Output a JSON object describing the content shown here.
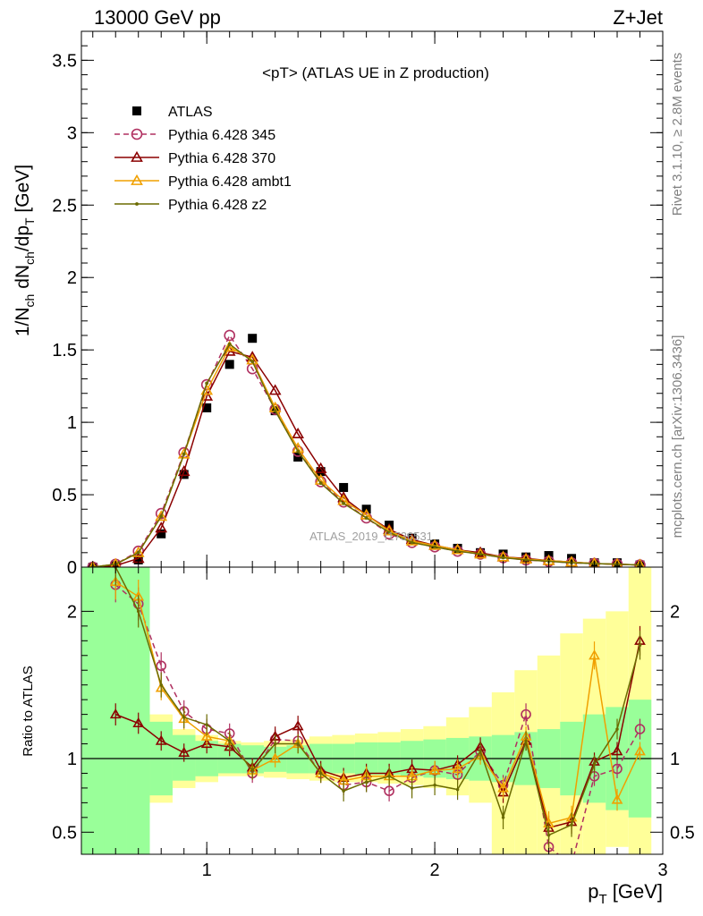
{
  "header": {
    "left": "13000 GeV pp",
    "right": "Z+Jet"
  },
  "side_labels": {
    "top": "Rivet 3.1.10, ≥ 2.8M events",
    "bottom": "mcplots.cern.ch [arXiv:1306.3436]"
  },
  "watermark": "ATLAS_2019_I1736531",
  "chart_data": [
    {
      "type": "line",
      "panel": "main",
      "title": "<pT> (ATLAS UE in Z production)",
      "ylabel": "1/N_ch dN_ch/dp_T [GeV]",
      "xlabel": "p_T [GeV]",
      "xlim": [
        0.45,
        3.0
      ],
      "ylim": [
        0,
        3.7
      ],
      "yticks": [
        "0",
        "0.5",
        "1",
        "1.5",
        "2",
        "2.5",
        "3",
        "3.5"
      ],
      "xticks": [
        "1",
        "2",
        "3"
      ],
      "legend_position": "top-left",
      "x": [
        0.5,
        0.6,
        0.7,
        0.8,
        0.9,
        1.0,
        1.1,
        1.2,
        1.3,
        1.4,
        1.5,
        1.6,
        1.7,
        1.8,
        1.9,
        2.0,
        2.1,
        2.2,
        2.3,
        2.4,
        2.5,
        2.6,
        2.7,
        2.8,
        2.9
      ],
      "series": [
        {
          "name": "ATLAS",
          "color": "#000000",
          "marker": "square",
          "values": [
            0.0,
            0.01,
            0.05,
            0.23,
            0.64,
            1.1,
            1.4,
            1.58,
            1.08,
            0.76,
            0.66,
            0.55,
            0.4,
            0.29,
            0.2,
            0.16,
            0.13,
            0.1,
            0.09,
            0.07,
            0.08,
            0.06,
            0.03,
            0.03,
            0.015
          ]
        },
        {
          "name": "Pythia 6.428 345",
          "color": "#b03060",
          "marker": "circle",
          "dashed": true,
          "values": [
            0.0,
            0.02,
            0.11,
            0.37,
            0.79,
            1.26,
            1.6,
            1.37,
            1.09,
            0.8,
            0.59,
            0.45,
            0.34,
            0.23,
            0.17,
            0.14,
            0.11,
            0.09,
            0.065,
            0.05,
            0.04,
            0.03,
            0.025,
            0.02,
            0.015
          ]
        },
        {
          "name": "Pythia 6.428 370",
          "color": "#8b0000",
          "marker": "triangle",
          "values": [
            0.0,
            0.01,
            0.06,
            0.27,
            0.66,
            1.18,
            1.49,
            1.45,
            1.22,
            0.92,
            0.68,
            0.48,
            0.36,
            0.26,
            0.19,
            0.15,
            0.12,
            0.1,
            0.07,
            0.06,
            0.045,
            0.035,
            0.025,
            0.02,
            0.015
          ]
        },
        {
          "name": "Pythia 6.428 ambt1",
          "color": "#f0a000",
          "marker": "triangle",
          "values": [
            0.0,
            0.02,
            0.1,
            0.35,
            0.78,
            1.22,
            1.52,
            1.43,
            1.1,
            0.82,
            0.6,
            0.46,
            0.36,
            0.25,
            0.18,
            0.15,
            0.12,
            0.09,
            0.07,
            0.055,
            0.045,
            0.035,
            0.025,
            0.02,
            0.015
          ]
        },
        {
          "name": "Pythia 6.428 z2",
          "color": "#6b6b00",
          "marker": "dot",
          "values": [
            0.0,
            0.02,
            0.1,
            0.35,
            0.78,
            1.27,
            1.54,
            1.42,
            1.08,
            0.8,
            0.58,
            0.44,
            0.34,
            0.24,
            0.17,
            0.14,
            0.11,
            0.09,
            0.065,
            0.05,
            0.04,
            0.03,
            0.025,
            0.02,
            0.015
          ]
        }
      ]
    },
    {
      "type": "line",
      "panel": "ratio",
      "ylabel": "Ratio to ATLAS",
      "xlabel": "p_T [GeV]",
      "xlim": [
        0.45,
        3.0
      ],
      "ylim": [
        0.35,
        2.3
      ],
      "yticks": [
        "0.5",
        "1",
        "2"
      ],
      "xticks": [
        "1",
        "2",
        "3"
      ],
      "band_edges": [
        0.45,
        0.55,
        0.65,
        0.75,
        0.85,
        0.95,
        1.05,
        1.15,
        1.25,
        1.35,
        1.45,
        1.55,
        1.65,
        1.75,
        1.85,
        1.95,
        2.05,
        2.15,
        2.25,
        2.35,
        2.45,
        2.55,
        2.65,
        2.75,
        2.85,
        2.95
      ],
      "band_stat": [
        [
          0.35,
          2.3
        ],
        [
          0.35,
          2.3
        ],
        [
          0.35,
          2.3
        ],
        [
          0.75,
          1.25
        ],
        [
          0.85,
          1.16
        ],
        [
          0.88,
          1.12
        ],
        [
          0.9,
          1.1
        ],
        [
          0.9,
          1.09
        ],
        [
          0.91,
          1.08
        ],
        [
          0.9,
          1.09
        ],
        [
          0.9,
          1.1
        ],
        [
          0.9,
          1.1
        ],
        [
          0.89,
          1.11
        ],
        [
          0.89,
          1.11
        ],
        [
          0.88,
          1.12
        ],
        [
          0.87,
          1.13
        ],
        [
          0.86,
          1.14
        ],
        [
          0.85,
          1.15
        ],
        [
          0.84,
          1.16
        ],
        [
          0.82,
          1.18
        ],
        [
          0.8,
          1.2
        ],
        [
          0.75,
          1.25
        ],
        [
          0.7,
          1.3
        ],
        [
          0.65,
          1.35
        ],
        [
          0.6,
          1.4
        ]
      ],
      "band_total": [
        [
          0.35,
          2.3
        ],
        [
          0.35,
          2.3
        ],
        [
          0.35,
          2.3
        ],
        [
          0.7,
          1.3
        ],
        [
          0.8,
          1.2
        ],
        [
          0.84,
          1.16
        ],
        [
          0.88,
          1.12
        ],
        [
          0.88,
          1.11
        ],
        [
          0.87,
          1.12
        ],
        [
          0.86,
          1.13
        ],
        [
          0.85,
          1.15
        ],
        [
          0.84,
          1.16
        ],
        [
          0.84,
          1.17
        ],
        [
          0.83,
          1.18
        ],
        [
          0.82,
          1.2
        ],
        [
          0.8,
          1.22
        ],
        [
          0.75,
          1.28
        ],
        [
          0.7,
          1.35
        ],
        [
          0.35,
          1.45
        ],
        [
          0.35,
          1.6
        ],
        [
          0.35,
          1.7
        ],
        [
          0.35,
          1.85
        ],
        [
          0.35,
          1.95
        ],
        [
          0.4,
          2.0
        ],
        [
          0.35,
          2.3
        ]
      ],
      "x": [
        0.6,
        0.7,
        0.8,
        0.9,
        1.0,
        1.1,
        1.2,
        1.3,
        1.4,
        1.5,
        1.6,
        1.7,
        1.8,
        1.9,
        2.0,
        2.1,
        2.2,
        2.3,
        2.4,
        2.5,
        2.6,
        2.7,
        2.8,
        2.9
      ],
      "series": [
        {
          "name": "Pythia 6.428 345",
          "color": "#b03060",
          "marker": "circle",
          "dashed": true,
          "values": [
            2.18,
            2.05,
            1.63,
            1.32,
            1.2,
            1.17,
            0.9,
            1.13,
            1.12,
            0.9,
            0.82,
            0.84,
            0.78,
            0.87,
            0.92,
            0.89,
            1.05,
            0.82,
            1.3,
            0.4,
            0.28,
            0.88,
            0.93,
            1.2
          ]
        },
        {
          "name": "Pythia 6.428 370",
          "color": "#8b0000",
          "marker": "triangle",
          "values": [
            1.3,
            1.24,
            1.12,
            1.04,
            1.1,
            1.08,
            0.94,
            1.15,
            1.22,
            0.92,
            0.87,
            0.9,
            0.9,
            0.93,
            0.92,
            0.96,
            1.08,
            0.77,
            1.12,
            0.53,
            0.57,
            0.98,
            1.05,
            1.8
          ]
        },
        {
          "name": "Pythia 6.428 ambt1",
          "color": "#f0a000",
          "marker": "triangle",
          "values": [
            2.2,
            2.1,
            1.48,
            1.27,
            1.15,
            1.12,
            0.92,
            1.0,
            1.1,
            0.9,
            0.85,
            0.88,
            0.88,
            0.88,
            0.92,
            0.93,
            1.02,
            0.8,
            1.15,
            0.56,
            0.6,
            1.7,
            0.72,
            1.05
          ]
        },
        {
          "name": "Pythia 6.428 z2",
          "color": "#6b6b00",
          "marker": "dot",
          "values": [
            2.3,
            2.0,
            1.5,
            1.28,
            1.23,
            1.12,
            0.92,
            1.1,
            1.1,
            0.9,
            0.78,
            0.84,
            0.88,
            0.8,
            0.82,
            0.79,
            1.05,
            0.6,
            1.12,
            0.48,
            0.55,
            0.96,
            1.2,
            1.77
          ]
        }
      ]
    }
  ]
}
